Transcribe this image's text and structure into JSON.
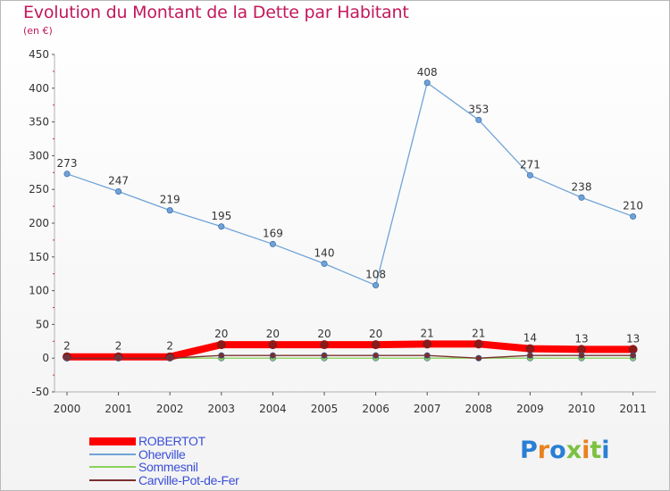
{
  "header": {
    "title": "Evolution du Montant de la Dette par Habitant",
    "unit": "(en €)"
  },
  "logo": {
    "text": "Proxiti",
    "colors": [
      "#2a7fd4",
      "#e8821e",
      "#2a7fd4",
      "#7cc142",
      "#e8821e",
      "#7cc142",
      "#2a7fd4"
    ]
  },
  "chart_data": {
    "type": "line",
    "categories": [
      "2000",
      "2001",
      "2002",
      "2003",
      "2004",
      "2005",
      "2006",
      "2007",
      "2008",
      "2009",
      "2010",
      "2011"
    ],
    "ylim": [
      -50,
      450
    ],
    "yticks": [
      "-50",
      "0",
      "50",
      "100",
      "150",
      "200",
      "250",
      "300",
      "350",
      "400",
      "450"
    ],
    "grid": false,
    "legend_position": "bottom-left",
    "series": [
      {
        "name": "ROBERTOT",
        "color": "#ff0000",
        "labels": true,
        "values": [
          2,
          2,
          2,
          20,
          20,
          20,
          20,
          21,
          21,
          14,
          13,
          13
        ]
      },
      {
        "name": "Oherville",
        "color": "#6fa3d8",
        "labels": true,
        "values": [
          273,
          247,
          219,
          195,
          169,
          140,
          108,
          408,
          353,
          271,
          238,
          210
        ]
      },
      {
        "name": "Sommesnil",
        "color": "#8ad25a",
        "labels": false,
        "values": [
          0,
          0,
          0,
          0,
          0,
          0,
          0,
          0,
          0,
          0,
          0,
          0
        ]
      },
      {
        "name": "Carville-Pot-de-Fer",
        "color": "#7a2f2f",
        "labels": false,
        "values": [
          0,
          0,
          0,
          4,
          4,
          4,
          4,
          4,
          0,
          4,
          4,
          4
        ]
      }
    ]
  }
}
